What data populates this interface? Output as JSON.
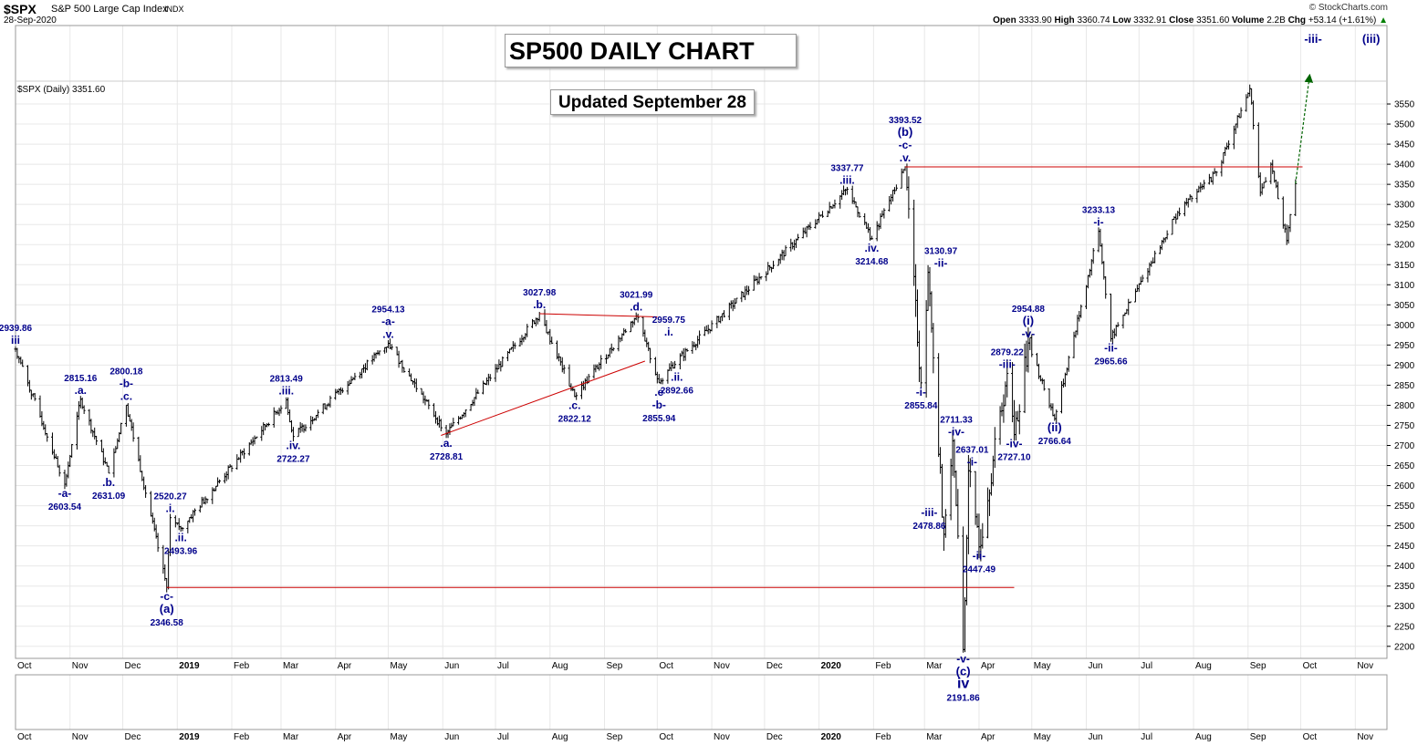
{
  "header": {
    "symbol": "$SPX",
    "description": "S&P 500 Large Cap Index",
    "exchange": "INDX",
    "date": "28-Sep-2020",
    "credit": "© StockCharts.com",
    "open_label": "Open",
    "open": "3333.90",
    "high_label": "High",
    "high": "3360.74",
    "low_label": "Low",
    "low": "3332.91",
    "close_label": "Close",
    "close": "3351.60",
    "volume_label": "Volume",
    "volume": "2.2B",
    "chg_label": "Chg",
    "chg": "+53.14 (+1.61%)",
    "up_arrow": "▲"
  },
  "panel_label": "$SPX (Daily) 3351.60",
  "title_box": "SP500 DAILY CHART",
  "updated_box": "Updated September 28",
  "colors": {
    "wave": "#00008b",
    "line": "#cc0000",
    "bar": "#000000",
    "arrow": "#006400",
    "grid": "#e8e8e8"
  },
  "chart_data": {
    "type": "line",
    "series_style": "ohlc-bars",
    "ylim": [
      2170,
      3600
    ],
    "y_ticks": [
      2200,
      2250,
      2300,
      2350,
      2400,
      2450,
      2500,
      2550,
      2600,
      2650,
      2700,
      2750,
      2800,
      2850,
      2900,
      2950,
      3000,
      3050,
      3100,
      3150,
      3200,
      3250,
      3300,
      3350,
      3400,
      3450,
      3500,
      3550
    ],
    "x_range": [
      "2018-10-01",
      "2020-11-19"
    ],
    "x_ticks": [
      {
        "label": "Oct",
        "date": "2018-10-01"
      },
      {
        "label": "Nov",
        "date": "2018-11-01"
      },
      {
        "label": "Dec",
        "date": "2018-12-01"
      },
      {
        "label": "2019",
        "date": "2019-01-01",
        "bold": true
      },
      {
        "label": "Feb",
        "date": "2019-02-01"
      },
      {
        "label": "Mar",
        "date": "2019-03-01"
      },
      {
        "label": "Apr",
        "date": "2019-04-01"
      },
      {
        "label": "May",
        "date": "2019-05-01"
      },
      {
        "label": "Jun",
        "date": "2019-06-01"
      },
      {
        "label": "Jul",
        "date": "2019-07-01"
      },
      {
        "label": "Aug",
        "date": "2019-08-01"
      },
      {
        "label": "Sep",
        "date": "2019-09-01"
      },
      {
        "label": "Oct",
        "date": "2019-10-01"
      },
      {
        "label": "Nov",
        "date": "2019-11-01"
      },
      {
        "label": "Dec",
        "date": "2019-12-01"
      },
      {
        "label": "2020",
        "date": "2020-01-01",
        "bold": true
      },
      {
        "label": "Feb",
        "date": "2020-02-01"
      },
      {
        "label": "Mar",
        "date": "2020-03-01"
      },
      {
        "label": "Apr",
        "date": "2020-04-01"
      },
      {
        "label": "May",
        "date": "2020-05-01"
      },
      {
        "label": "Jun",
        "date": "2020-06-01"
      },
      {
        "label": "Jul",
        "date": "2020-07-01"
      },
      {
        "label": "Aug",
        "date": "2020-08-01"
      },
      {
        "label": "Sep",
        "date": "2020-09-01"
      },
      {
        "label": "Oct",
        "date": "2020-10-01"
      },
      {
        "label": "Nov",
        "date": "2020-11-01"
      }
    ],
    "pivots": [
      {
        "date": "2018-10-01",
        "y": 2939.86
      },
      {
        "date": "2018-10-29",
        "y": 2603.54
      },
      {
        "date": "2018-11-07",
        "y": 2815.16
      },
      {
        "date": "2018-11-23",
        "y": 2631.09
      },
      {
        "date": "2018-12-03",
        "y": 2800.18
      },
      {
        "date": "2018-12-26",
        "y": 2346.58
      },
      {
        "date": "2018-12-28",
        "y": 2520.27
      },
      {
        "date": "2019-01-03",
        "y": 2493.96
      },
      {
        "date": "2019-03-04",
        "y": 2813.49
      },
      {
        "date": "2019-03-08",
        "y": 2722.27
      },
      {
        "date": "2019-05-01",
        "y": 2954.13
      },
      {
        "date": "2019-06-03",
        "y": 2728.81
      },
      {
        "date": "2019-07-26",
        "y": 3027.98
      },
      {
        "date": "2019-08-15",
        "y": 2822.12
      },
      {
        "date": "2019-09-19",
        "y": 3021.99
      },
      {
        "date": "2019-09-24",
        "y": 2959.75
      },
      {
        "date": "2019-10-02",
        "y": 2855.94
      },
      {
        "date": "2019-10-08",
        "y": 2892.66
      },
      {
        "date": "2020-01-17",
        "y": 3337.77
      },
      {
        "date": "2020-01-31",
        "y": 3214.68
      },
      {
        "date": "2020-02-19",
        "y": 3393.52
      },
      {
        "date": "2020-02-28",
        "y": 2855.84
      },
      {
        "date": "2020-03-03",
        "y": 3130.97
      },
      {
        "date": "2020-03-12",
        "y": 2478.86
      },
      {
        "date": "2020-03-17",
        "y": 2711.33
      },
      {
        "date": "2020-03-23",
        "y": 2191.86
      },
      {
        "date": "2020-03-26",
        "y": 2637.01
      },
      {
        "date": "2020-04-01",
        "y": 2447.49
      },
      {
        "date": "2020-04-17",
        "y": 2879.22
      },
      {
        "date": "2020-04-21",
        "y": 2727.1
      },
      {
        "date": "2020-04-29",
        "y": 2954.88
      },
      {
        "date": "2020-05-14",
        "y": 2766.64
      },
      {
        "date": "2020-06-08",
        "y": 3233.13
      },
      {
        "date": "2020-06-15",
        "y": 2965.66
      },
      {
        "date": "2020-07-23",
        "y": 3280
      },
      {
        "date": "2020-08-14",
        "y": 3380
      },
      {
        "date": "2020-09-02",
        "y": 3588
      },
      {
        "date": "2020-09-08",
        "y": 3330
      },
      {
        "date": "2020-09-14",
        "y": 3400
      },
      {
        "date": "2020-09-23",
        "y": 3210
      },
      {
        "date": "2020-09-28",
        "y": 3351.6
      }
    ],
    "lines": [
      {
        "x1": "2018-12-26",
        "y1": 2346.58,
        "x2": "2020-04-21",
        "y2": 2346.58
      },
      {
        "x1": "2020-02-19",
        "y1": 3393.52,
        "x2": "2020-10-02",
        "y2": 3393.52
      },
      {
        "x1": "2019-05-31",
        "y1": 2725,
        "x2": "2019-09-24",
        "y2": 2910
      },
      {
        "x1": "2019-07-26",
        "y1": 3027.98,
        "x2": "2019-10-01",
        "y2": 3020
      }
    ],
    "arrow": {
      "x1": "2020-09-28",
      "y1": 3351.6,
      "x2": "2020-10-06",
      "y2": 3620
    },
    "annotations": [
      {
        "date": "2018-10-01",
        "y": 2939.86,
        "lines": [
          "2939.86",
          "iii"
        ]
      },
      {
        "date": "2018-10-29",
        "y": 2603.54,
        "below": true,
        "lines": [
          "-a-",
          "2603.54"
        ]
      },
      {
        "date": "2018-11-07",
        "y": 2815.16,
        "lines": [
          "2815.16",
          ".a."
        ]
      },
      {
        "date": "2018-11-23",
        "y": 2631.09,
        "below": true,
        "lines": [
          ".b.",
          "2631.09"
        ]
      },
      {
        "date": "2018-12-03",
        "y": 2800.18,
        "lines": [
          "2800.18",
          "-b-",
          ".c."
        ]
      },
      {
        "date": "2018-12-26",
        "y": 2346.58,
        "below": true,
        "lines": [
          "-c-",
          "(a)",
          "2346.58"
        ]
      },
      {
        "date": "2018-12-28",
        "y": 2520.27,
        "lines": [
          "2520.27",
          ".i."
        ]
      },
      {
        "date": "2019-01-03",
        "y": 2493.96,
        "below": true,
        "lines": [
          ".ii.",
          "2493.96"
        ]
      },
      {
        "date": "2019-03-04",
        "y": 2813.49,
        "lines": [
          "2813.49",
          ".iii."
        ]
      },
      {
        "date": "2019-03-08",
        "y": 2722.27,
        "below": true,
        "lines": [
          ".iv.",
          "2722.27"
        ]
      },
      {
        "date": "2019-05-01",
        "y": 2954.13,
        "lines": [
          "2954.13",
          "-a-",
          ".v."
        ]
      },
      {
        "date": "2019-06-03",
        "y": 2728.81,
        "below": true,
        "lines": [
          ".a.",
          "2728.81"
        ]
      },
      {
        "date": "2019-07-26",
        "y": 3027.98,
        "lines": [
          "3027.98",
          ".b."
        ]
      },
      {
        "date": "2019-08-15",
        "y": 2822.12,
        "below": true,
        "lines": [
          ".c.",
          "2822.12"
        ]
      },
      {
        "date": "2019-09-19",
        "y": 3021.99,
        "lines": [
          "3021.99",
          ".d."
        ]
      },
      {
        "date": "2019-09-24",
        "y": 2959.75,
        "lines": [
          "2959.75",
          ".i."
        ],
        "shift": 26
      },
      {
        "date": "2019-10-02",
        "y": 2855.94,
        "below": true,
        "lines": [
          ".e",
          "-b-",
          "2855.94"
        ]
      },
      {
        "date": "2019-10-08",
        "y": 2892.66,
        "below": true,
        "lines": [
          ".ii.",
          "2892.66"
        ],
        "shift": 8
      },
      {
        "date": "2020-01-17",
        "y": 3337.77,
        "lines": [
          "3337.77",
          ".iii."
        ]
      },
      {
        "date": "2020-01-31",
        "y": 3214.68,
        "below": true,
        "lines": [
          ".iv.",
          "3214.68"
        ]
      },
      {
        "date": "2020-02-19",
        "y": 3393.52,
        "lines": [
          "3393.52",
          "(b)",
          "-c-",
          ".v."
        ]
      },
      {
        "date": "2020-02-28",
        "y": 2855.84,
        "below": true,
        "lines": [
          "-i-",
          "2855.84"
        ]
      },
      {
        "date": "2020-03-03",
        "y": 3130.97,
        "lines": [
          "3130.97",
          "-ii-"
        ],
        "shift": 14
      },
      {
        "date": "2020-03-12",
        "y": 2478.86,
        "lines": [
          "-iii-",
          "2478.86"
        ],
        "shift": -16,
        "side": true
      },
      {
        "date": "2020-03-17",
        "y": 2711.33,
        "lines": [
          "2711.33",
          "-iv-"
        ],
        "shift": 4
      },
      {
        "date": "2020-03-23",
        "y": 2191.86,
        "below": true,
        "lines": [
          "-v-",
          "(c)",
          "iv",
          "2191.86"
        ]
      },
      {
        "date": "2020-03-26",
        "y": 2637.01,
        "lines": [
          "2637.01",
          "-i-"
        ],
        "shift": 4
      },
      {
        "date": "2020-04-01",
        "y": 2447.49,
        "below": true,
        "lines": [
          "-ii-",
          "2447.49"
        ]
      },
      {
        "date": "2020-04-17",
        "y": 2879.22,
        "lines": [
          "2879.22",
          "-iii-"
        ]
      },
      {
        "date": "2020-04-21",
        "y": 2727.1,
        "below": true,
        "lines": [
          "-iv-",
          "2727.10"
        ]
      },
      {
        "date": "2020-04-29",
        "y": 2954.88,
        "lines": [
          "2954.88",
          "(i)",
          "-v-"
        ]
      },
      {
        "date": "2020-05-14",
        "y": 2766.64,
        "below": true,
        "lines": [
          "(ii)",
          "2766.64"
        ]
      },
      {
        "date": "2020-06-08",
        "y": 3233.13,
        "lines": [
          "3233.13",
          "-i-"
        ]
      },
      {
        "date": "2020-06-15",
        "y": 2965.66,
        "below": true,
        "lines": [
          "-ii-",
          "2965.66"
        ]
      }
    ],
    "top_labels": [
      {
        "text": "-iii-",
        "date": "2020-10-08"
      },
      {
        "text": "(iii)",
        "date": "2020-11-10"
      }
    ]
  }
}
